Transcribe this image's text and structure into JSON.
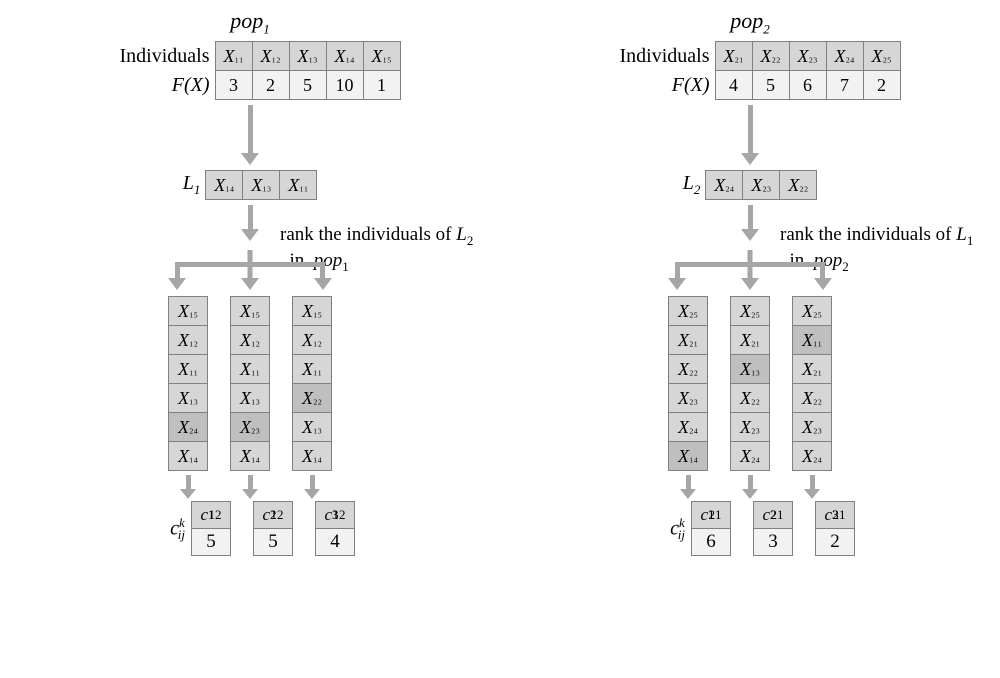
{
  "colors": {
    "cell_dark": "#d6d6d6",
    "cell_light": "#f2f2f2",
    "cell_highlight": "#bfbfbf",
    "border": "#808080",
    "arrow": "#a6a6a6",
    "background": "#ffffff",
    "text": "#000000"
  },
  "fonts": {
    "family": "Times New Roman",
    "title_size": 22,
    "label_size": 20,
    "cell_size": 18
  },
  "labels": {
    "individuals": "Individuals",
    "fx": "F(X)",
    "ck": "c",
    "ck_sub": "ij",
    "ck_sup": "k"
  },
  "left": {
    "title": "pop",
    "title_sub": "1",
    "individuals": [
      "X₁₁",
      "X₁₂",
      "X₁₃",
      "X₁₄",
      "X₁₅"
    ],
    "fx": [
      "3",
      "2",
      "5",
      "10",
      "1"
    ],
    "L_label": "L",
    "L_sub": "1",
    "L_cells": [
      "X₁₄",
      "X₁₃",
      "X₁₁"
    ],
    "rank_text_l1": "rank the individuals of",
    "rank_text_Lvar": "L",
    "rank_text_Lsub": "2",
    "rank_text_l2a": "in",
    "rank_text_pop": "pop",
    "rank_text_popsub": "1",
    "columns": [
      {
        "cells": [
          "X₁₅",
          "X₁₂",
          "X₁₁",
          "X₁₃",
          "X₂₄",
          "X₁₄"
        ],
        "hl": [
          false,
          false,
          false,
          false,
          true,
          false
        ]
      },
      {
        "cells": [
          "X₁₅",
          "X₁₂",
          "X₁₁",
          "X₁₃",
          "X₂₃",
          "X₁₄"
        ],
        "hl": [
          false,
          false,
          false,
          false,
          true,
          false
        ]
      },
      {
        "cells": [
          "X₁₅",
          "X₁₂",
          "X₁₁",
          "X₂₂",
          "X₁₃",
          "X₁₄"
        ],
        "hl": [
          false,
          false,
          false,
          true,
          false,
          false
        ]
      }
    ],
    "results": {
      "c_sub": "12",
      "tops": [
        "1",
        "2",
        "3"
      ],
      "bots": [
        "5",
        "5",
        "4"
      ]
    }
  },
  "right": {
    "title": "pop",
    "title_sub": "2",
    "individuals": [
      "X₂₁",
      "X₂₂",
      "X₂₃",
      "X₂₄",
      "X₂₅"
    ],
    "fx": [
      "4",
      "5",
      "6",
      "7",
      "2"
    ],
    "L_label": "L",
    "L_sub": "2",
    "L_cells": [
      "X₂₄",
      "X₂₃",
      "X₂₂"
    ],
    "rank_text_l1": "rank the individuals of",
    "rank_text_Lvar": "L",
    "rank_text_Lsub": "1",
    "rank_text_l2a": "in",
    "rank_text_pop": "pop",
    "rank_text_popsub": "2",
    "columns": [
      {
        "cells": [
          "X₂₅",
          "X₂₁",
          "X₂₂",
          "X₂₃",
          "X₂₄",
          "X₁₄"
        ],
        "hl": [
          false,
          false,
          false,
          false,
          false,
          true
        ]
      },
      {
        "cells": [
          "X₂₅",
          "X₂₁",
          "X₁₃",
          "X₂₂",
          "X₂₃",
          "X₂₄"
        ],
        "hl": [
          false,
          false,
          true,
          false,
          false,
          false
        ]
      },
      {
        "cells": [
          "X₂₅",
          "X₁₁",
          "X₂₁",
          "X₂₂",
          "X₂₃",
          "X₂₄"
        ],
        "hl": [
          false,
          true,
          false,
          false,
          false,
          false
        ]
      }
    ],
    "results": {
      "c_sub": "21",
      "tops": [
        "1",
        "2",
        "3"
      ],
      "bots": [
        "6",
        "3",
        "2"
      ]
    }
  }
}
